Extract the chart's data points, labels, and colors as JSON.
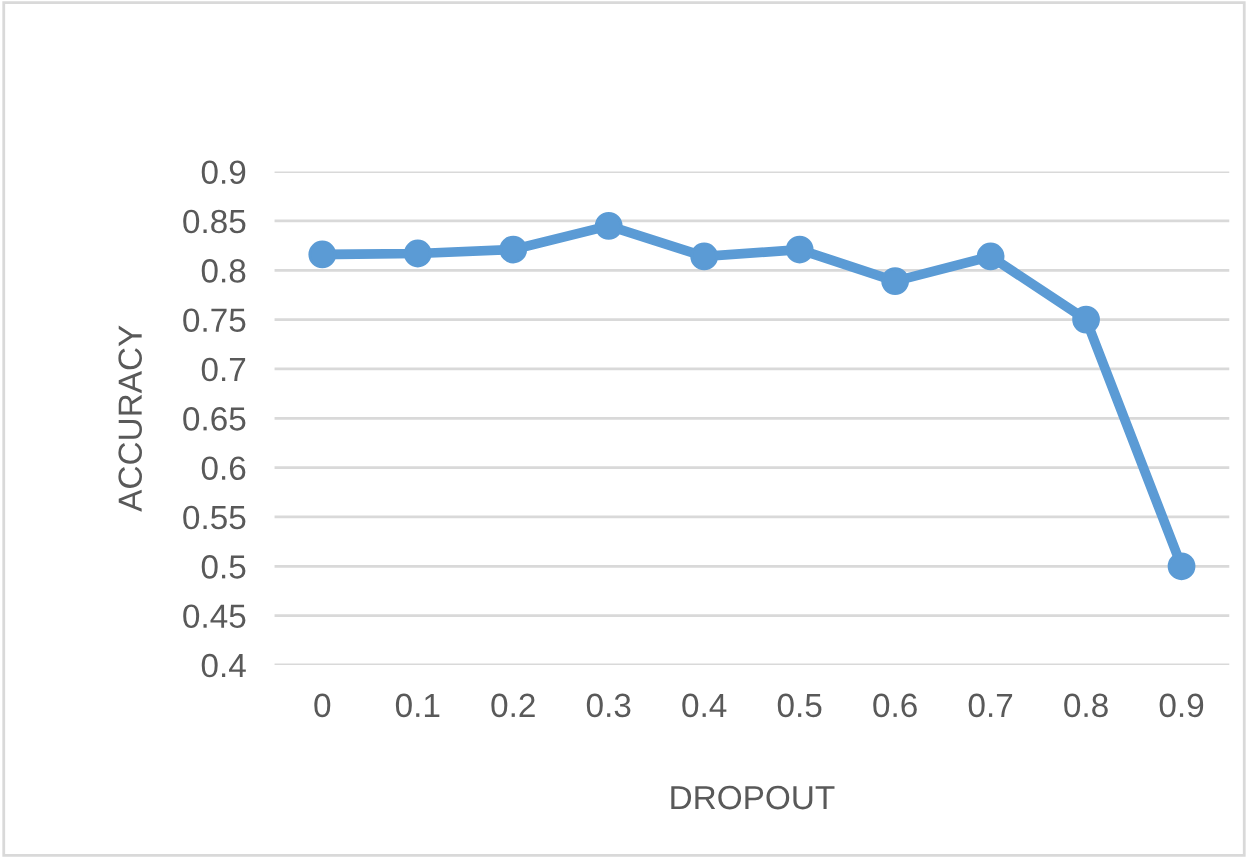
{
  "chart_data": {
    "type": "line",
    "categories": [
      "0",
      "0.1",
      "0.2",
      "0.3",
      "0.4",
      "0.5",
      "0.6",
      "0.7",
      "0.8",
      "0.9"
    ],
    "series": [
      {
        "color": "#5b9bd5",
        "values": [
          0.816,
          0.817,
          0.821,
          0.845,
          0.814,
          0.821,
          0.789,
          0.814,
          0.75,
          0.5
        ]
      }
    ],
    "xlabel": "DROPOUT",
    "ylabel": "ACCURACY",
    "ylim": [
      0.4,
      0.9
    ],
    "yticks": [
      0.4,
      0.45,
      0.5,
      0.55,
      0.6,
      0.65,
      0.7,
      0.75,
      0.8,
      0.85,
      0.9
    ],
    "grid": "y",
    "marker": "circle",
    "line_style": "solid",
    "legend": false
  }
}
